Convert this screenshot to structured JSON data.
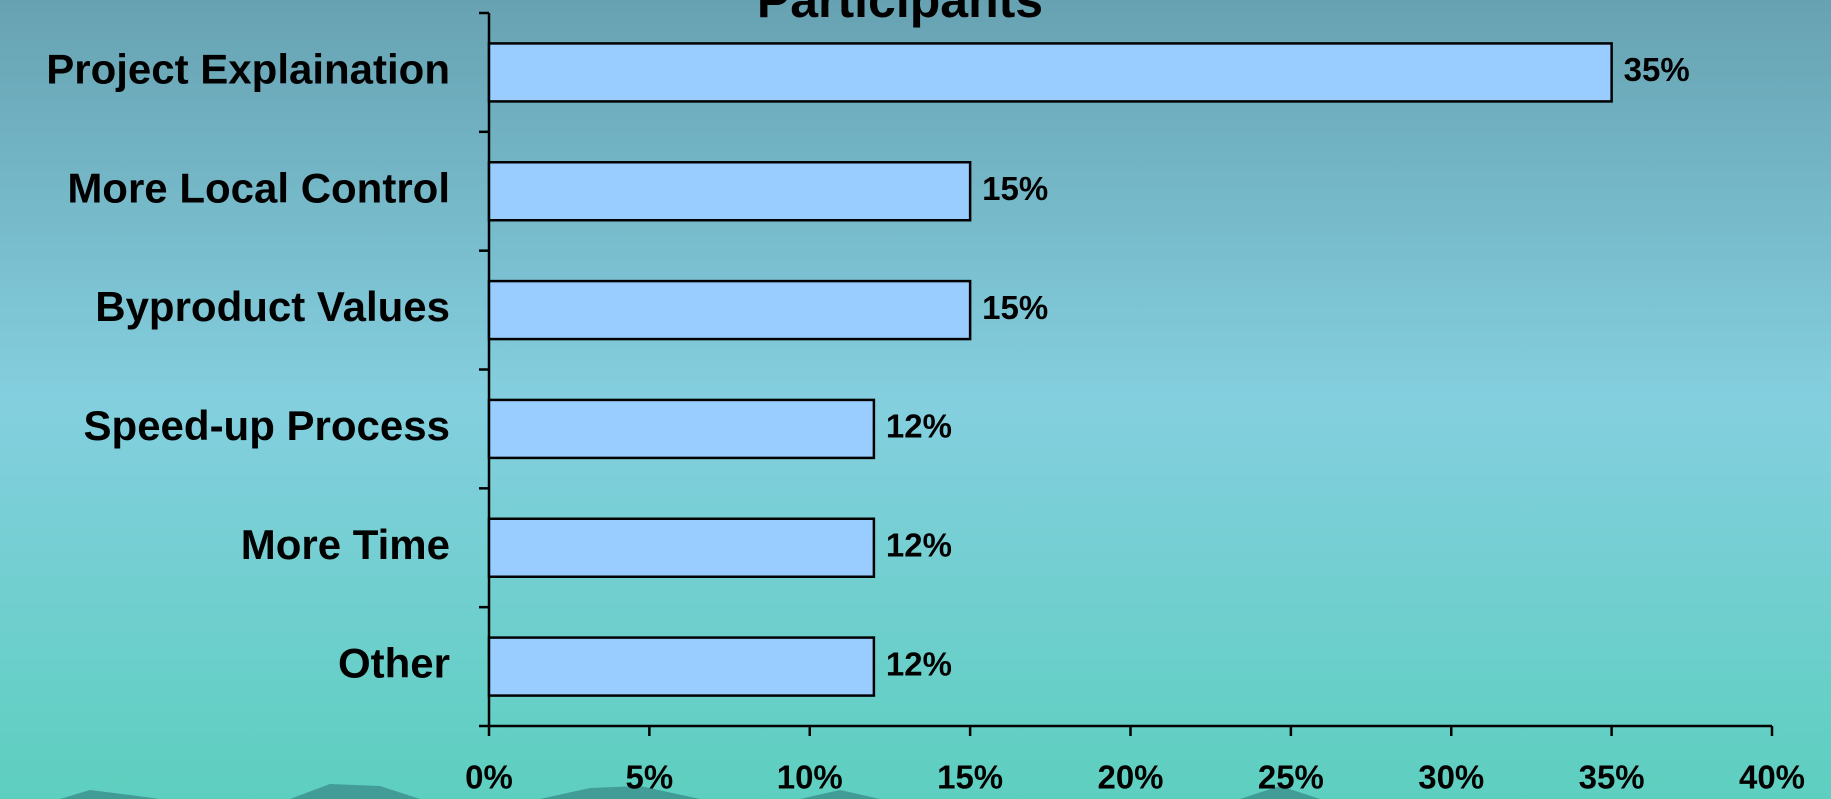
{
  "chart_data": {
    "type": "bar",
    "orientation": "horizontal",
    "title": "Participants",
    "categories": [
      "Project Explaination",
      "More Local Control",
      "Byproduct Values",
      "Speed-up Process",
      "More Time",
      "Other"
    ],
    "values": [
      35,
      15,
      15,
      12,
      12,
      12
    ],
    "value_labels": [
      "35%",
      "15%",
      "15%",
      "12%",
      "12%",
      "12%"
    ],
    "color": "#99ccff",
    "xlim": [
      0,
      40
    ],
    "xticks": [
      {
        "value": 0,
        "label": "0%"
      },
      {
        "value": 5,
        "label": "5%"
      },
      {
        "value": 10,
        "label": "10%"
      },
      {
        "value": 15,
        "label": "15%"
      },
      {
        "value": 20,
        "label": "20%"
      },
      {
        "value": 25,
        "label": "25%"
      },
      {
        "value": 30,
        "label": "30%"
      },
      {
        "value": 35,
        "label": "35%"
      },
      {
        "value": 40,
        "label": "40%"
      }
    ],
    "grid": false
  }
}
